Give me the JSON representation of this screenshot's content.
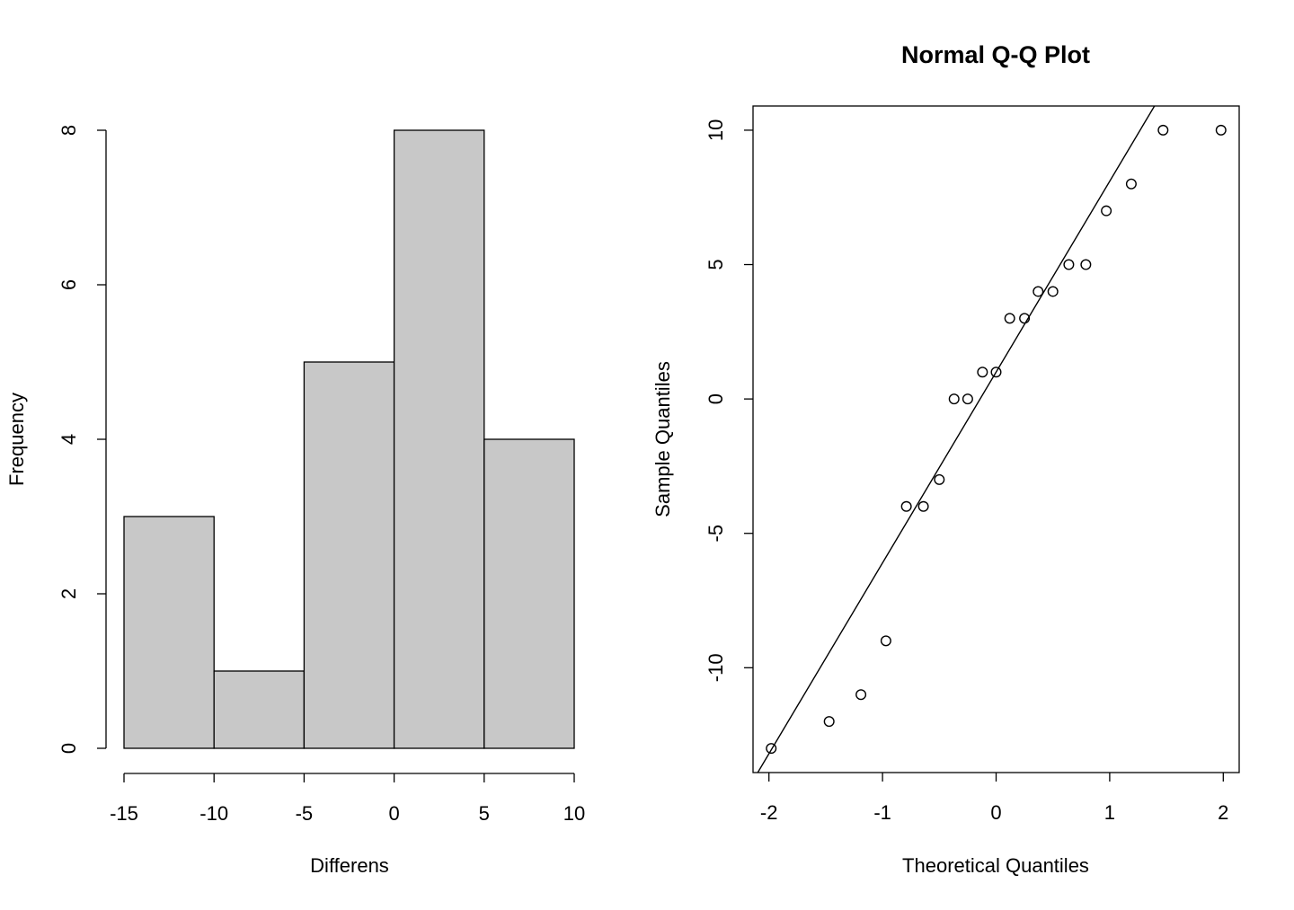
{
  "chart_data": [
    {
      "type": "bar",
      "subtype": "histogram",
      "title": "",
      "xlabel": "Differens",
      "ylabel": "Frequency",
      "bins": [
        [
          -15,
          -10
        ],
        [
          -10,
          -5
        ],
        [
          -5,
          0
        ],
        [
          0,
          5
        ],
        [
          5,
          10
        ]
      ],
      "values": [
        3,
        1,
        5,
        8,
        4
      ],
      "xlim": [
        -15,
        10
      ],
      "ylim": [
        0,
        8
      ],
      "xticks": [
        -15,
        -10,
        -5,
        0,
        5,
        10
      ],
      "yticks": [
        0,
        2,
        4,
        6,
        8
      ],
      "bar_color": "#c8c8c8",
      "grid": false
    },
    {
      "type": "scatter",
      "subtype": "qqplot",
      "title": "Normal Q-Q Plot",
      "xlabel": "Theoretical Quantiles",
      "ylabel": "Sample Quantiles",
      "x": [
        -1.98,
        -1.47,
        -1.19,
        -0.97,
        -0.79,
        -0.64,
        -0.5,
        -0.37,
        -0.25,
        -0.12,
        0.0,
        0.12,
        0.25,
        0.37,
        0.5,
        0.64,
        0.79,
        0.97,
        1.19,
        1.47,
        1.98
      ],
      "y": [
        -13,
        -12,
        -11,
        -9,
        -4,
        -4,
        -3,
        0,
        0,
        1,
        1,
        3,
        3,
        4,
        4,
        5,
        5,
        7,
        8,
        10,
        10
      ],
      "reference_line": {
        "intercept": 1.0,
        "slope": 7.1
      },
      "xlim": [
        -2.14,
        2.14
      ],
      "ylim": [
        -13.9,
        10.9
      ],
      "xticks": [
        -2,
        -1,
        0,
        1,
        2
      ],
      "yticks": [
        -10,
        -5,
        0,
        5,
        10
      ],
      "marker": "open-circle",
      "grid": false
    }
  ]
}
